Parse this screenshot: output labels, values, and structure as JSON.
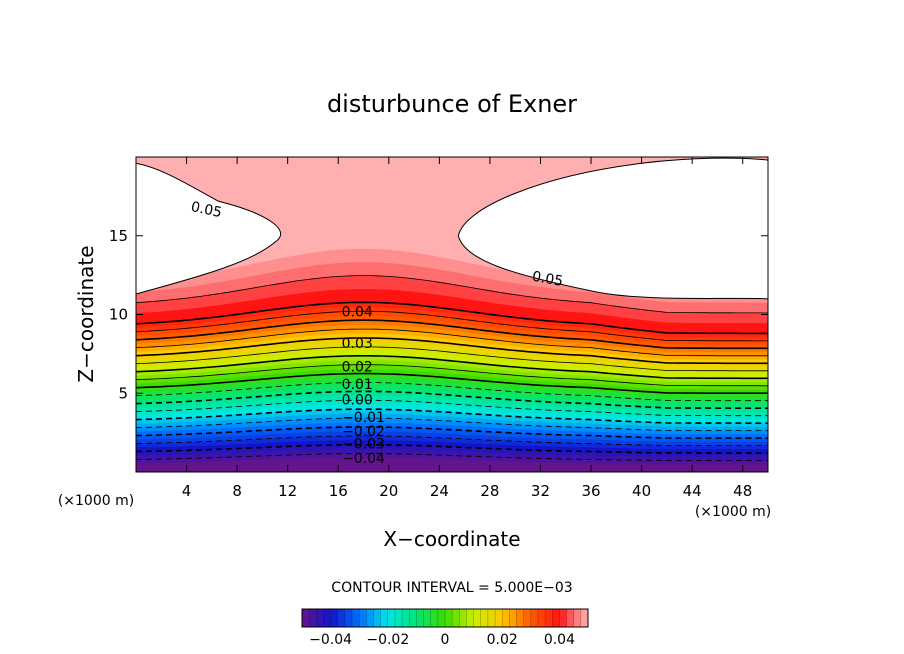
{
  "chart_data": {
    "type": "contour",
    "title": "disturbunce of Exner",
    "xlabel": "X−coordinate",
    "ylabel": "Z−coordinate",
    "x_unit_label": "(×1000 m)",
    "x_unit_label_right": "(×1000 m)",
    "xlim": [
      0,
      50
    ],
    "ylim": [
      0,
      20
    ],
    "x_ticks": [
      4,
      8,
      12,
      16,
      20,
      24,
      28,
      32,
      36,
      40,
      44,
      48
    ],
    "x_tick_labels": [
      "4",
      "8",
      "12",
      "16",
      "20",
      "24",
      "28",
      "32",
      "36",
      "40",
      "44",
      "48"
    ],
    "y_ticks": [
      5,
      10,
      15
    ],
    "y_tick_labels": [
      "5",
      "10",
      "15"
    ],
    "contour_interval_text": "CONTOUR INTERVAL = 5.000E−03",
    "contour_interval": 0.005,
    "value_range": [
      -0.05,
      0.05
    ],
    "negative_contours_dashed": true,
    "fill_above_0.05": "none",
    "contour_labels": [
      {
        "text": "0.05",
        "x": 5.5,
        "z": 16.7
      },
      {
        "text": "0.05",
        "x": 32.5,
        "z": 12.3
      },
      {
        "text": "0.04",
        "x": 17.5,
        "z": 10.2
      },
      {
        "text": "0.03",
        "x": 17.5,
        "z": 8.2
      },
      {
        "text": "0.02",
        "x": 17.5,
        "z": 6.7
      },
      {
        "text": "0.01",
        "x": 17.5,
        "z": 5.6
      },
      {
        "text": "0.00",
        "x": 17.5,
        "z": 4.6
      },
      {
        "text": "−0.01",
        "x": 18.0,
        "z": 3.5
      },
      {
        "text": "−0.02",
        "x": 18.0,
        "z": 2.6
      },
      {
        "text": "−0.03",
        "x": 18.0,
        "z": 1.8
      },
      {
        "text": "−0.04",
        "x": 18.0,
        "z": 0.9
      }
    ],
    "colorbar": {
      "tick_labels": [
        "−0.04",
        "−0.02",
        "0",
        "0.02",
        "0.04"
      ],
      "tick_values": [
        -0.04,
        -0.02,
        0,
        0.02,
        0.04
      ],
      "range": [
        -0.05,
        0.05
      ],
      "colormap": "rainbow (purple→blue→cyan→green→yellow→red→pink)"
    }
  }
}
